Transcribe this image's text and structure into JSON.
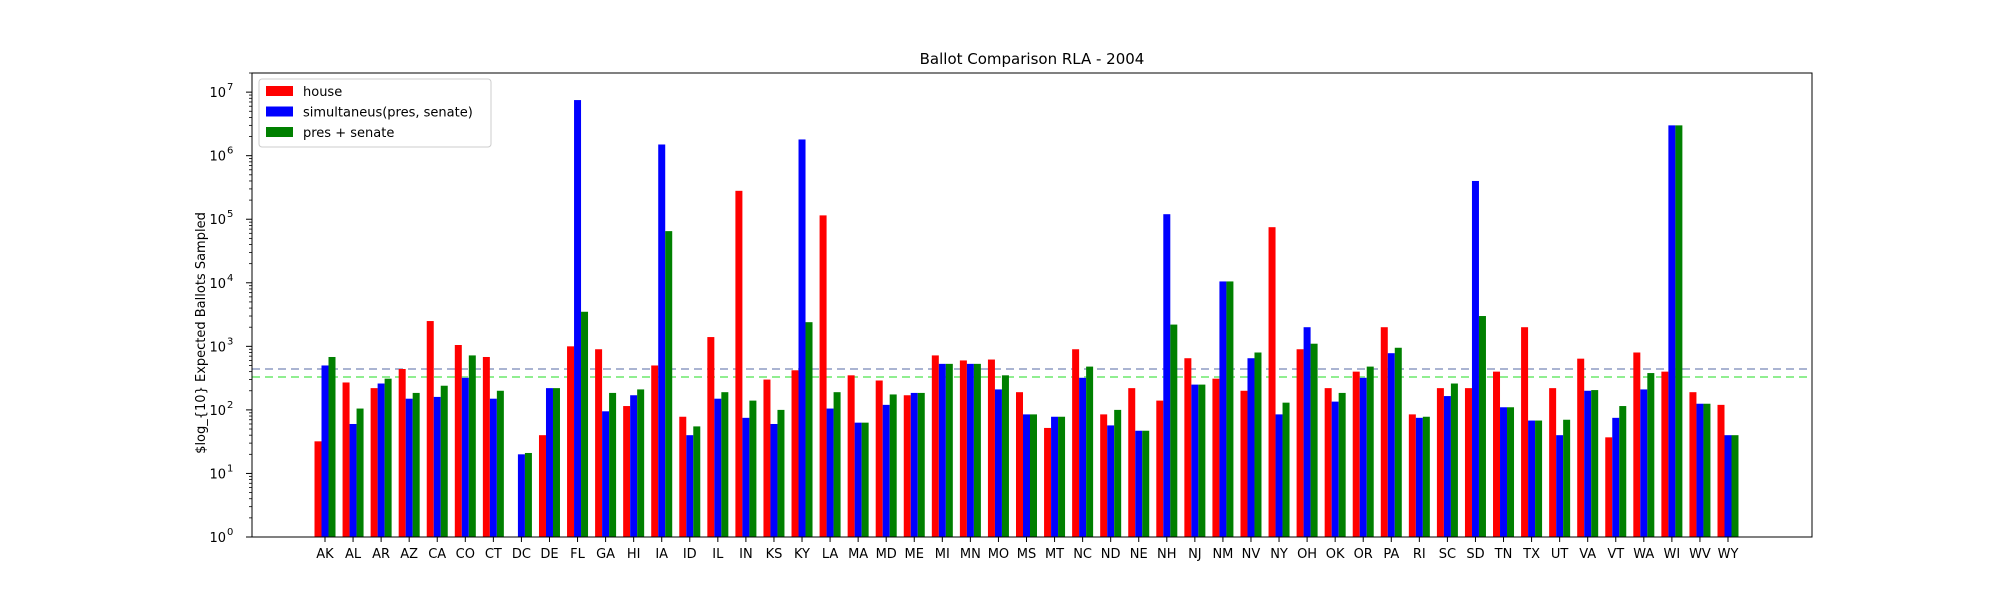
{
  "chart_data": {
    "type": "bar",
    "title": "Ballot Comparison RLA - 2004",
    "xlabel": "",
    "ylabel": "$log_{10} Expected Ballots Sampled",
    "yscale": "log",
    "ylim": [
      1,
      20000000
    ],
    "yticks": [
      {
        "value": 1,
        "base": "10",
        "exp": "0"
      },
      {
        "value": 10,
        "base": "10",
        "exp": "1"
      },
      {
        "value": 100,
        "base": "10",
        "exp": "2"
      },
      {
        "value": 1000,
        "base": "10",
        "exp": "3"
      },
      {
        "value": 10000,
        "base": "10",
        "exp": "4"
      },
      {
        "value": 100000,
        "base": "10",
        "exp": "5"
      },
      {
        "value": 1000000,
        "base": "10",
        "exp": "6"
      },
      {
        "value": 10000000,
        "base": "10",
        "exp": "7"
      }
    ],
    "grid": false,
    "legend_position": "top-left",
    "categories": [
      "AK",
      "AL",
      "AR",
      "AZ",
      "CA",
      "CO",
      "CT",
      "DC",
      "DE",
      "FL",
      "GA",
      "HI",
      "IA",
      "ID",
      "IL",
      "IN",
      "KS",
      "KY",
      "LA",
      "MA",
      "MD",
      "ME",
      "MI",
      "MN",
      "MO",
      "MS",
      "MT",
      "NC",
      "ND",
      "NE",
      "NH",
      "NJ",
      "NM",
      "NV",
      "NY",
      "OH",
      "OK",
      "OR",
      "PA",
      "RI",
      "SC",
      "SD",
      "TN",
      "TX",
      "UT",
      "VA",
      "VT",
      "WA",
      "WI",
      "WV",
      "WY"
    ],
    "series": [
      {
        "name": "house",
        "color": "#ff0000",
        "values": [
          32,
          270,
          220,
          440,
          2500,
          1050,
          680,
          null,
          40,
          1000,
          900,
          115,
          500,
          78,
          1400,
          280000,
          300,
          420,
          115000,
          350,
          290,
          170,
          720,
          600,
          620,
          190,
          52,
          900,
          85,
          220,
          140,
          650,
          310,
          200,
          75000,
          900,
          220,
          400,
          2000,
          85,
          220,
          220,
          400,
          2000,
          220,
          640,
          37,
          800,
          400,
          190,
          120
        ]
      },
      {
        "name": "simultaneus(pres, senate)",
        "color": "#0000ff",
        "values": [
          500,
          60,
          260,
          150,
          160,
          320,
          150,
          20,
          220,
          7500000,
          95,
          170,
          1500000,
          40,
          150,
          75,
          60,
          1800000,
          105,
          63,
          120,
          185,
          530,
          530,
          210,
          85,
          78,
          320,
          57,
          47,
          120000,
          250,
          10500,
          650,
          85,
          2000,
          135,
          320,
          780,
          75,
          165,
          400000,
          110,
          68,
          40,
          200,
          75,
          210,
          3000000,
          125,
          40
        ]
      },
      {
        "name": "pres + senate",
        "color": "#008000",
        "values": [
          680,
          105,
          310,
          185,
          240,
          720,
          200,
          21,
          220,
          3500,
          185,
          210,
          65000,
          55,
          190,
          140,
          100,
          2400,
          190,
          63,
          175,
          185,
          530,
          530,
          350,
          85,
          78,
          480,
          100,
          47,
          2200,
          250,
          10500,
          800,
          130,
          1100,
          185,
          480,
          950,
          78,
          260,
          3000,
          110,
          68,
          70,
          205,
          115,
          380,
          3000000,
          125,
          40
        ]
      }
    ],
    "reference_lines": [
      {
        "value": 440,
        "color": "#aab4d2",
        "style": "dashed"
      },
      {
        "value": 330,
        "color": "#90ee90",
        "style": "dashed"
      }
    ]
  }
}
